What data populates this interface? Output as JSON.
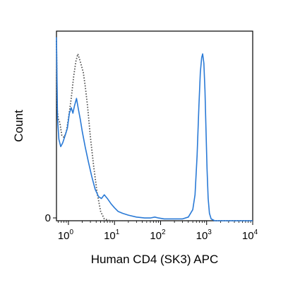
{
  "chart_data": {
    "type": "line",
    "xlabel": "Human CD4 (SK3) APC",
    "ylabel": "Count",
    "x_scale": "log",
    "xlim": [
      0.55,
      10000
    ],
    "ylim": [
      0,
      100
    ],
    "x_ticks": [
      {
        "value": 1,
        "base": "10",
        "exp": "0"
      },
      {
        "value": 10,
        "base": "10",
        "exp": "1"
      },
      {
        "value": 100,
        "base": "10",
        "exp": "2"
      },
      {
        "value": 1000,
        "base": "10",
        "exp": "3"
      },
      {
        "value": 10000,
        "base": "10",
        "exp": "4"
      }
    ],
    "y_ticks": [
      {
        "value": 0,
        "label": "0"
      }
    ],
    "grid": false,
    "legend": "none",
    "series": [
      {
        "style": "dotted",
        "color": "#555555",
        "points": [
          [
            0.55,
            97
          ],
          [
            0.57,
            60
          ],
          [
            0.6,
            55
          ],
          [
            0.65,
            53
          ],
          [
            0.72,
            46
          ],
          [
            0.8,
            45
          ],
          [
            0.9,
            48
          ],
          [
            1.0,
            55
          ],
          [
            1.15,
            66
          ],
          [
            1.3,
            78
          ],
          [
            1.45,
            86
          ],
          [
            1.6,
            90
          ],
          [
            1.75,
            87
          ],
          [
            1.9,
            84
          ],
          [
            2.1,
            80
          ],
          [
            2.3,
            73
          ],
          [
            2.6,
            62
          ],
          [
            3.0,
            45
          ],
          [
            3.5,
            30
          ],
          [
            4.2,
            15
          ],
          [
            5.0,
            5
          ],
          [
            6.0,
            1
          ],
          [
            8.0,
            0
          ],
          [
            10000,
            0
          ]
        ]
      },
      {
        "style": "solid",
        "color": "#2a7ad6",
        "points": [
          [
            0.55,
            99
          ],
          [
            0.58,
            55
          ],
          [
            0.62,
            44
          ],
          [
            0.68,
            40
          ],
          [
            0.75,
            42
          ],
          [
            0.85,
            46
          ],
          [
            0.95,
            50
          ],
          [
            1.05,
            58
          ],
          [
            1.15,
            61
          ],
          [
            1.25,
            58
          ],
          [
            1.35,
            62
          ],
          [
            1.5,
            66
          ],
          [
            1.65,
            60
          ],
          [
            1.8,
            55
          ],
          [
            2.0,
            48
          ],
          [
            2.3,
            40
          ],
          [
            2.7,
            32
          ],
          [
            3.2,
            24
          ],
          [
            3.8,
            17
          ],
          [
            4.5,
            13
          ],
          [
            5.2,
            12
          ],
          [
            6.0,
            14
          ],
          [
            7.0,
            12
          ],
          [
            8.5,
            9
          ],
          [
            10,
            7
          ],
          [
            12,
            5
          ],
          [
            15,
            4
          ],
          [
            20,
            3
          ],
          [
            30,
            2
          ],
          [
            45,
            1.5
          ],
          [
            60,
            1.5
          ],
          [
            75,
            2
          ],
          [
            90,
            1.5
          ],
          [
            120,
            1
          ],
          [
            200,
            1
          ],
          [
            300,
            1
          ],
          [
            400,
            2
          ],
          [
            500,
            6
          ],
          [
            560,
            14
          ],
          [
            620,
            35
          ],
          [
            680,
            62
          ],
          [
            730,
            80
          ],
          [
            780,
            88
          ],
          [
            820,
            90
          ],
          [
            870,
            85
          ],
          [
            920,
            70
          ],
          [
            970,
            48
          ],
          [
            1020,
            28
          ],
          [
            1080,
            12
          ],
          [
            1150,
            4
          ],
          [
            1250,
            1
          ],
          [
            1500,
            0
          ],
          [
            3000,
            0
          ],
          [
            10000,
            0
          ]
        ]
      }
    ]
  }
}
